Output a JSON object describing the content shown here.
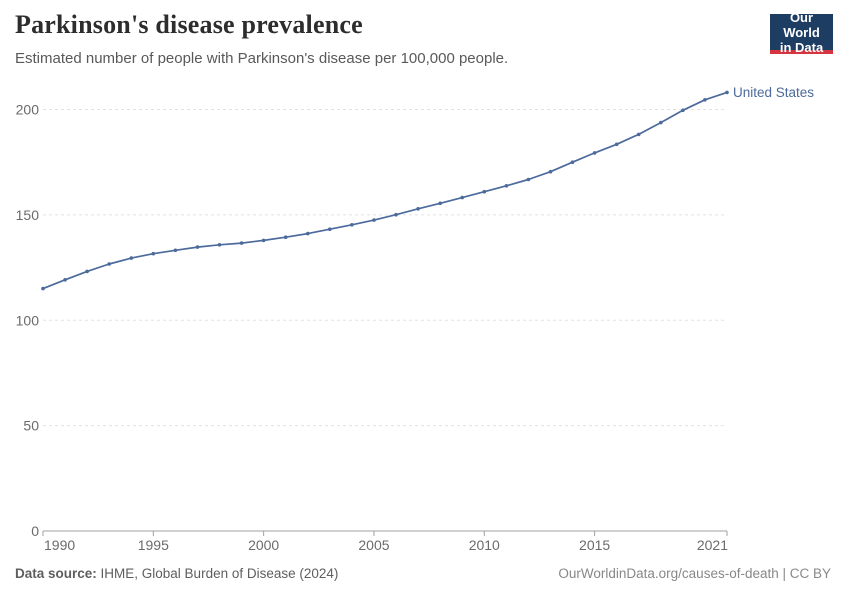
{
  "header": {
    "title": "Parkinson's disease prevalence",
    "subtitle": "Estimated number of people with Parkinson's disease per 100,000 people.",
    "logo": {
      "line1": "Our World",
      "line2": "in Data",
      "bg_color": "#1d3d63",
      "bar_color": "#d4353f"
    }
  },
  "chart_data": {
    "type": "line",
    "title": "Parkinson's disease prevalence",
    "xlabel": "",
    "ylabel": "",
    "grid": "horizontal-dashed",
    "legend_position": "end-of-line-label",
    "xlim": [
      1990,
      2021
    ],
    "ylim": [
      0,
      210
    ],
    "x_ticks": [
      1990,
      1995,
      2000,
      2005,
      2010,
      2015,
      2021
    ],
    "y_ticks": [
      0,
      50,
      100,
      150,
      200
    ],
    "x": [
      1990,
      1991,
      1992,
      1993,
      1994,
      1995,
      1996,
      1997,
      1998,
      1999,
      2000,
      2001,
      2002,
      2003,
      2004,
      2005,
      2006,
      2007,
      2008,
      2009,
      2010,
      2011,
      2012,
      2013,
      2014,
      2015,
      2016,
      2017,
      2018,
      2019,
      2020,
      2021
    ],
    "series": [
      {
        "name": "United States",
        "color": "#4c6a9c",
        "values": [
          115.0,
          119.2,
          123.2,
          126.7,
          129.5,
          131.6,
          133.2,
          134.7,
          135.8,
          136.6,
          137.9,
          139.4,
          141.1,
          143.2,
          145.3,
          147.5,
          150.1,
          152.9,
          155.5,
          158.2,
          161.0,
          163.8,
          166.8,
          170.5,
          175.0,
          179.4,
          183.5,
          188.2,
          193.8,
          199.6,
          204.6,
          208.1
        ]
      }
    ],
    "style": {
      "gridline_color": "#e2e2e2",
      "axis_color": "#a1a1a1",
      "tick_label_color": "#6b6b6b"
    }
  },
  "footer": {
    "source_label": "Data source:",
    "source_value": " IHME, Global Burden of Disease (2024)",
    "attribution": "OurWorldinData.org/causes-of-death | CC BY"
  }
}
